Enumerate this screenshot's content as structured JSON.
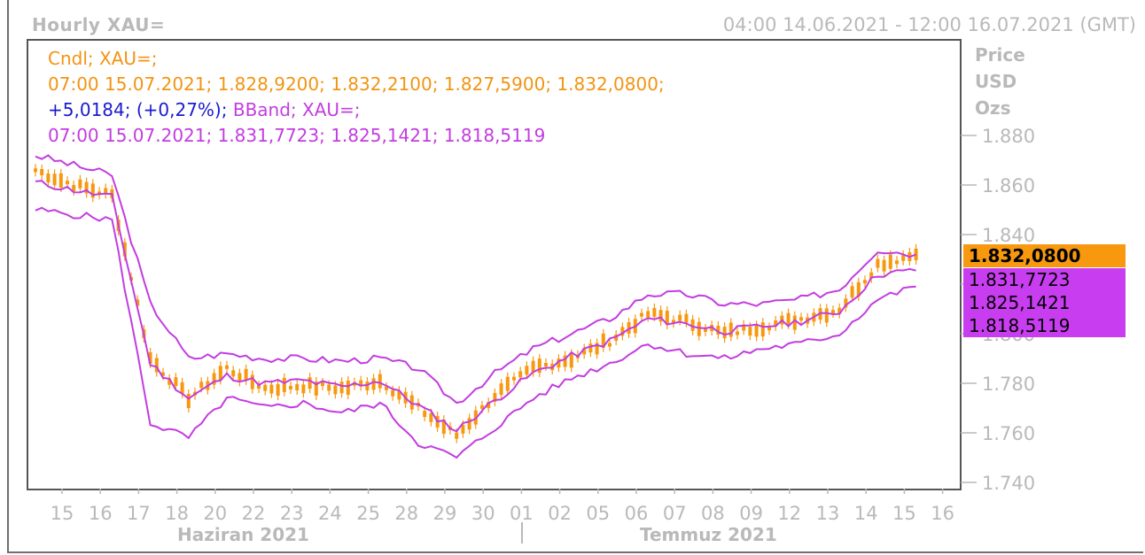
{
  "header": {
    "title": "Hourly XAU=",
    "range": "04:00 14.06.2021 - 12:00 16.07.2021 (GMT)"
  },
  "axis_unit": {
    "line1": "Price",
    "line2": "USD",
    "line3": "Ozs"
  },
  "legend": {
    "line1": "Cndl; XAU=;",
    "line2": "07:00 15.07.2021; 1.828,9200; 1.832,2100; 1.827,5900; 1.832,0800;",
    "line3_change": "+5,0184; (+0,27%);",
    "line3_bband": "BBand; XAU=;",
    "line4": "07:00 15.07.2021; 1.831,7723; 1.825,1421; 1.818,5119"
  },
  "price_tags": {
    "close": "1.832,0800",
    "bb_upper": "1.831,7723",
    "bb_mid": "1.825,1421",
    "bb_lower": "1.818,5119"
  },
  "months": {
    "june": "Haziran 2021",
    "july": "Temmuz 2021"
  },
  "colors": {
    "candle": "#f7980f",
    "bband": "#c33ce0",
    "change": "#1a1ad0",
    "axis_text": "#b9b9b9"
  },
  "chart_data": {
    "type": "line",
    "title": "Hourly XAU=",
    "ylabel": "Price USD Ozs",
    "ylim": [
      1740,
      1880
    ],
    "yticks": [
      "1.740",
      "1.760",
      "1.780",
      "1.800",
      "1.820",
      "1.840",
      "1.860",
      "1.880"
    ],
    "xtick_labels": [
      "15",
      "16",
      "17",
      "18",
      "20",
      "22",
      "23",
      "24",
      "25",
      "28",
      "29",
      "30",
      "01",
      "02",
      "05",
      "06",
      "07",
      "08",
      "09",
      "12",
      "13",
      "14",
      "15",
      "16"
    ],
    "x": [
      "15",
      "16",
      "17",
      "18",
      "20",
      "22",
      "23",
      "24",
      "25",
      "28",
      "29",
      "30",
      "01",
      "02",
      "05",
      "06",
      "07",
      "08",
      "09",
      "12",
      "13",
      "14",
      "15",
      "16"
    ],
    "series": [
      {
        "name": "Cndl",
        "values": [
          1866,
          1860,
          1856,
          1790,
          1774,
          1786,
          1778,
          1779,
          1778,
          1781,
          1770,
          1759,
          1775,
          1786,
          1790,
          1797,
          1808,
          1805,
          1800,
          1803,
          1806,
          1810,
          1828,
          1832
        ]
      },
      {
        "name": "BBand upper",
        "values": [
          1872,
          1868,
          1864,
          1812,
          1790,
          1792,
          1790,
          1790,
          1789,
          1790,
          1786,
          1772,
          1784,
          1794,
          1800,
          1806,
          1816,
          1816,
          1812,
          1812,
          1814,
          1818,
          1834,
          1832
        ]
      },
      {
        "name": "BBand lower",
        "values": [
          1850,
          1848,
          1846,
          1764,
          1758,
          1774,
          1770,
          1772,
          1768,
          1772,
          1756,
          1750,
          1762,
          1774,
          1782,
          1788,
          1796,
          1792,
          1790,
          1794,
          1796,
          1800,
          1814,
          1819
        ]
      }
    ]
  }
}
